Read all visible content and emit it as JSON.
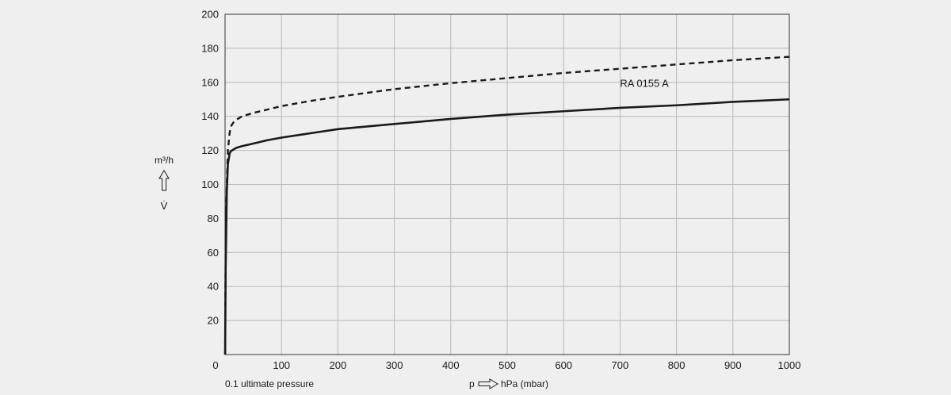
{
  "chart_data": {
    "type": "line",
    "xlim": [
      0,
      1000
    ],
    "ylim": [
      0,
      200
    ],
    "x_ticks": [
      100,
      200,
      300,
      400,
      500,
      600,
      700,
      800,
      900,
      1000
    ],
    "y_ticks": [
      20,
      40,
      60,
      80,
      100,
      120,
      140,
      160,
      180,
      200
    ],
    "origin_label": "0",
    "x_tick_labels": [
      "100",
      "200",
      "300",
      "400",
      "500",
      "600",
      "700",
      "800",
      "900",
      "1000"
    ],
    "y_tick_labels": [
      "20",
      "40",
      "60",
      "80",
      "100",
      "120",
      "140",
      "160",
      "180",
      "200"
    ],
    "xlabel_symbol": "p",
    "xlabel_unit": "hPa (mbar)",
    "ylabel_unit": "m³/h",
    "ylabel_symbol": "V̇",
    "x_note": "0.1 ultimate pressure",
    "grid": true,
    "series": [
      {
        "name": "",
        "style": "dashed",
        "color": "#1a1a1a",
        "x": [
          0.1,
          1,
          3,
          5,
          8,
          10,
          15,
          20,
          30,
          50,
          75,
          100,
          150,
          200,
          300,
          400,
          500,
          600,
          700,
          800,
          900,
          1000
        ],
        "y": [
          0,
          60,
          100,
          120,
          130,
          134,
          136.5,
          138,
          140,
          142,
          144,
          146,
          149,
          151.5,
          156,
          159.5,
          162.5,
          165.5,
          168,
          170.5,
          173,
          175
        ]
      },
      {
        "name": "RA 0155 A",
        "style": "solid",
        "color": "#1a1a1a",
        "x": [
          0.1,
          1,
          3,
          5,
          8,
          10,
          15,
          20,
          30,
          50,
          75,
          100,
          150,
          200,
          300,
          400,
          500,
          600,
          700,
          800,
          900,
          1000
        ],
        "y": [
          0,
          50,
          95,
          112,
          118,
          119.5,
          120.5,
          121.5,
          122.5,
          124,
          126,
          127.5,
          130,
          132.5,
          135.5,
          138.5,
          141,
          143,
          145,
          146.5,
          148.5,
          150
        ]
      }
    ]
  }
}
